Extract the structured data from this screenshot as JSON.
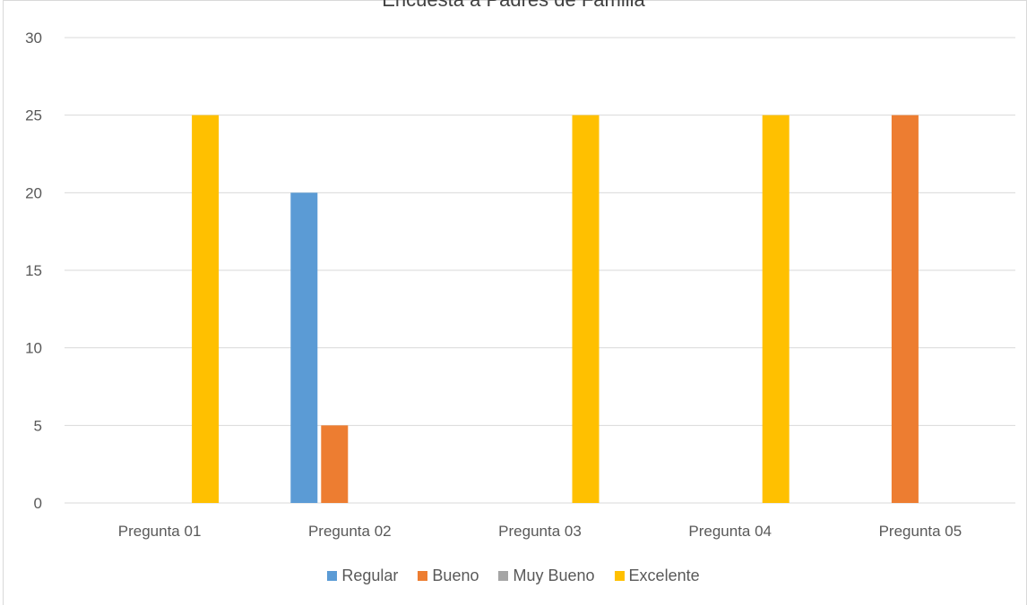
{
  "chart_data": {
    "type": "bar",
    "title": "Encuesta a Padres de Familia",
    "xlabel": "",
    "ylabel": "",
    "ylim": [
      0,
      30
    ],
    "yticks": [
      0,
      5,
      10,
      15,
      20,
      25,
      30
    ],
    "grid": true,
    "legend_position": "bottom",
    "categories": [
      "Pregunta 01",
      "Pregunta 02",
      "Pregunta 03",
      "Pregunta 04",
      "Pregunta 05"
    ],
    "series": [
      {
        "name": "Regular",
        "color": "#5b9bd5",
        "values": [
          0,
          20,
          0,
          0,
          0
        ]
      },
      {
        "name": "Bueno",
        "color": "#ed7d31",
        "values": [
          0,
          5,
          0,
          0,
          25
        ]
      },
      {
        "name": "Muy Bueno",
        "color": "#a5a5a5",
        "values": [
          0,
          0,
          0,
          0,
          0
        ]
      },
      {
        "name": "Excelente",
        "color": "#ffc000",
        "values": [
          25,
          0,
          25,
          25,
          0
        ]
      }
    ]
  }
}
